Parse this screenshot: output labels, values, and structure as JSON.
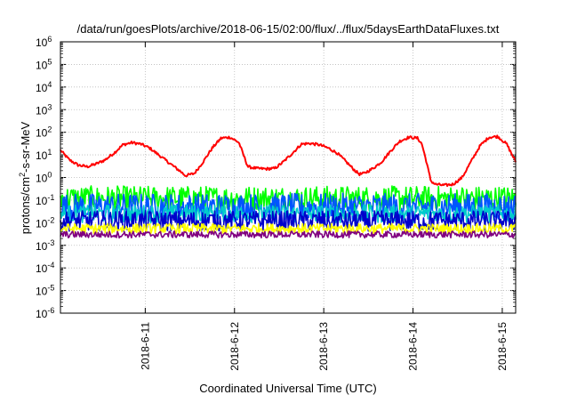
{
  "chart_data": {
    "type": "line",
    "title": "/data/run/goesPlots/archive/2018-06-15/02:00/flux/../flux/5daysEarthDataFluxes.txt",
    "xlabel": "Coordinated Universal Time (UTC)",
    "ylabel_prefix": "protons/cm",
    "ylabel_sup": "2",
    "ylabel_suffix": "-s-sr-MeV",
    "yscale": "log",
    "ylim_exponents": [
      -6,
      6
    ],
    "ytick_base": "10",
    "yticks": [
      "-6",
      "-5",
      "-4",
      "-3",
      "-2",
      "-1",
      "0",
      "1",
      "2",
      "3",
      "4",
      "5",
      "6"
    ],
    "xlim_days": [
      0,
      5.1
    ],
    "xticks": [
      {
        "label": "2018-6-11",
        "day": 0.95
      },
      {
        "label": "2018-6-12",
        "day": 1.95
      },
      {
        "label": "2018-6-13",
        "day": 2.95
      },
      {
        "label": "2018-6-14",
        "day": 3.95
      },
      {
        "label": "2018-6-15",
        "day": 4.95
      }
    ],
    "grid": true,
    "series": [
      {
        "color": "#ff0000",
        "kind": "smooth",
        "noise": 0.06,
        "points": [
          [
            0,
            16
          ],
          [
            0.1,
            6
          ],
          [
            0.2,
            3.5
          ],
          [
            0.3,
            3
          ],
          [
            0.4,
            4
          ],
          [
            0.5,
            6
          ],
          [
            0.6,
            12
          ],
          [
            0.7,
            28
          ],
          [
            0.8,
            35
          ],
          [
            0.9,
            30
          ],
          [
            1.0,
            20
          ],
          [
            1.1,
            10
          ],
          [
            1.2,
            5
          ],
          [
            1.3,
            2.5
          ],
          [
            1.35,
            1.8
          ],
          [
            1.4,
            1.2
          ],
          [
            1.5,
            1.5
          ],
          [
            1.6,
            5
          ],
          [
            1.7,
            20
          ],
          [
            1.8,
            55
          ],
          [
            1.9,
            60
          ],
          [
            2.0,
            35
          ],
          [
            2.05,
            10
          ],
          [
            2.1,
            3
          ],
          [
            2.2,
            2.5
          ],
          [
            2.3,
            2.4
          ],
          [
            2.4,
            2.5
          ],
          [
            2.5,
            5
          ],
          [
            2.6,
            12
          ],
          [
            2.7,
            30
          ],
          [
            2.8,
            32
          ],
          [
            2.9,
            28
          ],
          [
            3.0,
            20
          ],
          [
            3.1,
            12
          ],
          [
            3.2,
            5
          ],
          [
            3.3,
            2
          ],
          [
            3.35,
            1.4
          ],
          [
            3.4,
            1.5
          ],
          [
            3.5,
            2.5
          ],
          [
            3.6,
            5
          ],
          [
            3.7,
            15
          ],
          [
            3.8,
            40
          ],
          [
            3.9,
            60
          ],
          [
            4.0,
            55
          ],
          [
            4.05,
            30
          ],
          [
            4.1,
            5
          ],
          [
            4.15,
            0.7
          ],
          [
            4.2,
            0.5
          ],
          [
            4.3,
            0.45
          ],
          [
            4.4,
            0.5
          ],
          [
            4.5,
            1
          ],
          [
            4.6,
            5
          ],
          [
            4.7,
            25
          ],
          [
            4.8,
            60
          ],
          [
            4.9,
            65
          ],
          [
            5.0,
            30
          ],
          [
            5.05,
            12
          ],
          [
            5.1,
            5
          ]
        ]
      },
      {
        "color": "#00ff00",
        "kind": "noisy",
        "base": 0.12,
        "noise": 0.55
      },
      {
        "color": "#0055ff",
        "kind": "noisy",
        "base": 0.05,
        "noise": 0.6
      },
      {
        "color": "#00cccc",
        "kind": "noisy",
        "base": 0.025,
        "noise": 0.4
      },
      {
        "color": "#0000cc",
        "kind": "noisy",
        "base": 0.012,
        "noise": 0.45
      },
      {
        "color": "#ffff00",
        "kind": "noisy",
        "base": 0.0055,
        "noise": 0.22
      },
      {
        "color": "#800080",
        "kind": "noisy",
        "base": 0.003,
        "noise": 0.15
      }
    ]
  }
}
